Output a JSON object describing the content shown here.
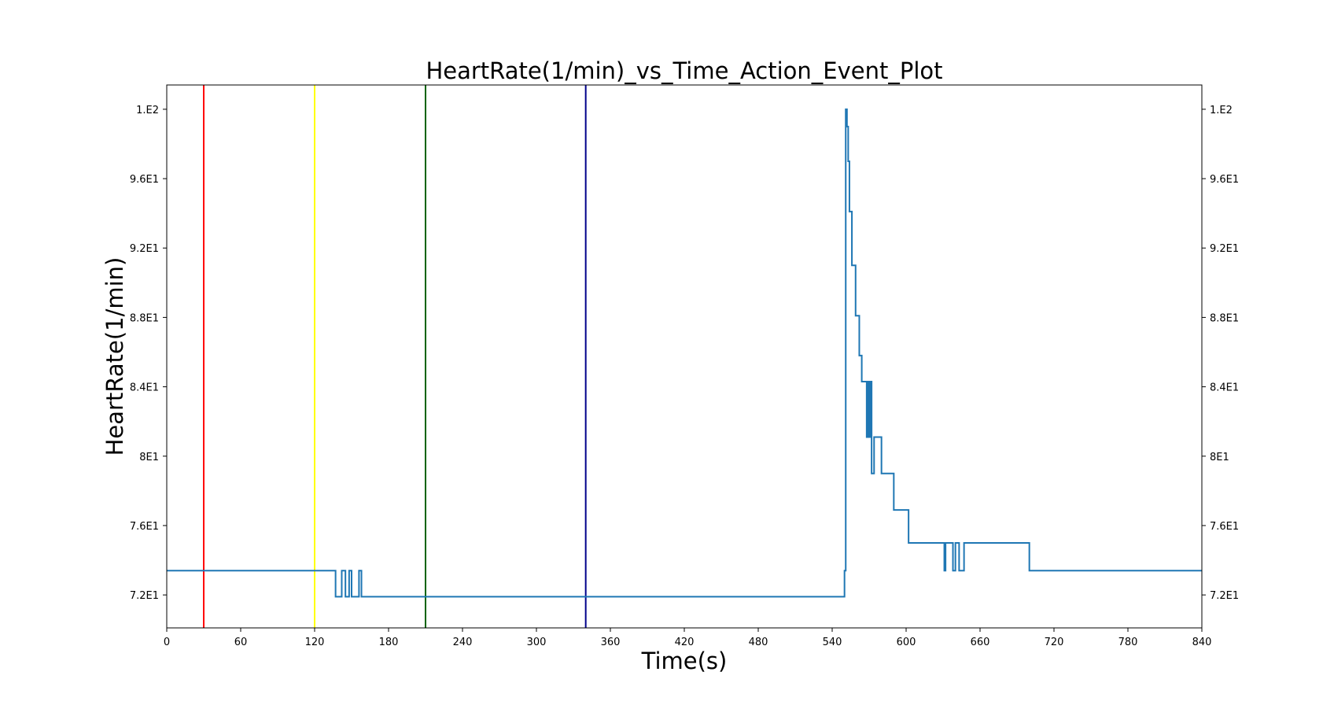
{
  "chart_data": {
    "type": "line",
    "title": "HeartRate(1/min)_vs_Time_Action_Event_Plot",
    "xlabel": "Time(s)",
    "ylabel": "HeartRate(1/min)",
    "xlim": [
      0,
      840
    ],
    "ylim": [
      70.1,
      101.4
    ],
    "x_ticks": [
      0,
      60,
      120,
      180,
      240,
      300,
      360,
      420,
      480,
      540,
      600,
      660,
      720,
      780,
      840
    ],
    "x_tick_labels": [
      "0",
      "60",
      "120",
      "180",
      "240",
      "300",
      "360",
      "420",
      "480",
      "540",
      "600",
      "660",
      "720",
      "780",
      "840"
    ],
    "y_ticks": [
      72,
      76,
      80,
      84,
      88,
      92,
      96,
      100
    ],
    "y_tick_labels": [
      "7.2E1",
      "7.6E1",
      "8E1",
      "8.4E1",
      "8.8E1",
      "9.2E1",
      "9.6E1",
      "1.E2"
    ],
    "y_ticks_right": true,
    "grid": false,
    "event_lines": [
      {
        "x": 30,
        "color": "#ff0000"
      },
      {
        "x": 120,
        "color": "#ffff00"
      },
      {
        "x": 210,
        "color": "#006400"
      },
      {
        "x": 340,
        "color": "#00008b"
      }
    ],
    "series": [
      {
        "color": "#1f77b4",
        "step": true,
        "x": [
          0,
          136,
          137,
          138,
          142,
          143,
          145,
          146,
          148,
          149,
          150,
          151,
          155,
          156,
          157,
          158,
          200,
          300,
          400,
          500,
          549,
          550,
          551,
          552,
          553,
          554,
          555,
          556,
          558,
          559,
          561,
          562,
          563,
          564,
          566,
          567,
          568,
          569,
          570,
          571,
          572,
          574,
          576,
          580,
          590,
          601,
          602,
          630,
          631,
          632,
          633,
          637,
          638,
          640,
          641,
          643,
          644,
          647,
          700,
          760,
          840
        ],
        "y": [
          73.4,
          73.4,
          71.9,
          71.9,
          73.4,
          73.4,
          71.9,
          71.9,
          73.4,
          73.4,
          71.9,
          71.9,
          71.9,
          73.4,
          73.4,
          71.9,
          71.9,
          71.9,
          71.9,
          71.9,
          71.9,
          73.4,
          100.0,
          99.0,
          97.0,
          94.1,
          94.1,
          91.0,
          91.0,
          88.1,
          88.1,
          85.8,
          85.8,
          84.3,
          84.3,
          84.3,
          81.1,
          84.3,
          81.1,
          84.3,
          79.0,
          81.1,
          81.1,
          79.0,
          76.9,
          76.9,
          75.0,
          75.0,
          73.4,
          75.0,
          75.0,
          75.0,
          73.4,
          75.0,
          75.0,
          73.4,
          73.4,
          75.0,
          73.4,
          73.4,
          73.4
        ]
      }
    ]
  }
}
